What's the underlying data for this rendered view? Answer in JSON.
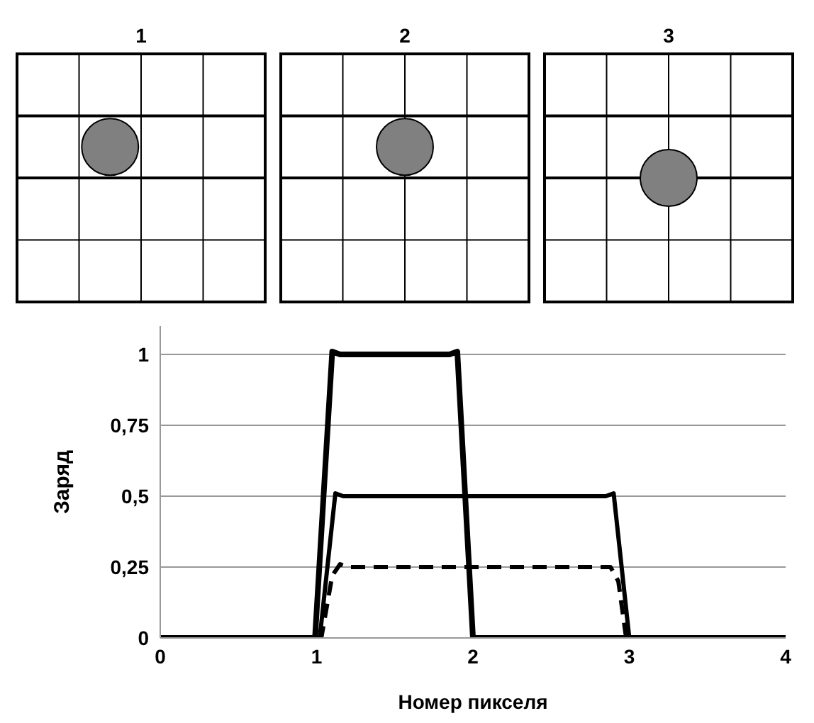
{
  "chart_data": {
    "type": "line",
    "xlabel": "Номер пикселя",
    "ylabel": "Заряд",
    "annotations": [
      "1",
      "2",
      "3"
    ],
    "xlim": [
      0,
      4
    ],
    "xticks": [
      0,
      1,
      2,
      3,
      4
    ],
    "ylim": [
      0,
      1.1
    ],
    "yticks": [
      0,
      {
        "value": 0.25,
        "label": "0,25"
      },
      {
        "value": 0.5,
        "label": "0,5"
      },
      {
        "value": 0.75,
        "label": "0,75"
      },
      1
    ],
    "grid": "y",
    "marker": "none",
    "series": [
      {
        "color": "#000000",
        "line_style": "solid",
        "x": [
          0,
          0.99,
          1.1,
          1.15,
          1.85,
          1.9,
          2.0,
          4
        ],
        "values": [
          0,
          0,
          1.01,
          1,
          1,
          1.01,
          0,
          0
        ]
      },
      {
        "color": "#000000",
        "line_style": "solid",
        "x": [
          0,
          1.02,
          1.12,
          1.17,
          2.85,
          2.9,
          3.0,
          4
        ],
        "values": [
          0,
          0,
          0.51,
          0.5,
          0.5,
          0.51,
          0,
          0
        ]
      },
      {
        "color": "#000000",
        "line_style": "dashed",
        "x": [
          0,
          1.03,
          1.1,
          1.15,
          1.2,
          2.88,
          2.93,
          2.98,
          4
        ],
        "values": [
          0,
          0,
          0.22,
          0.26,
          0.25,
          0.25,
          0.2,
          0,
          0
        ]
      }
    ]
  }
}
